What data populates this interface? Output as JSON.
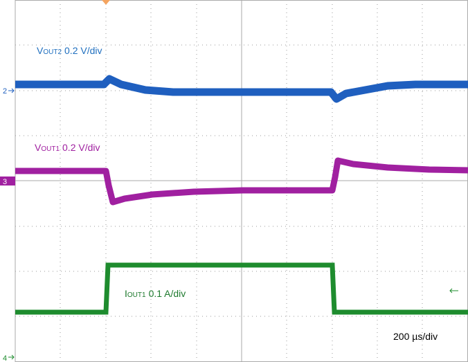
{
  "traces": [
    {
      "symbol": "V",
      "subscript": "OUT2",
      "scale": "0.2 V/div",
      "marker": "2"
    },
    {
      "symbol": "V",
      "subscript": "OUT1",
      "scale": "0.2 V/div",
      "marker": "3"
    },
    {
      "symbol": "I",
      "subscript": "OUT1",
      "scale": "0.1 A/div",
      "marker": "4"
    }
  ],
  "timebase": "200 µs/div"
}
